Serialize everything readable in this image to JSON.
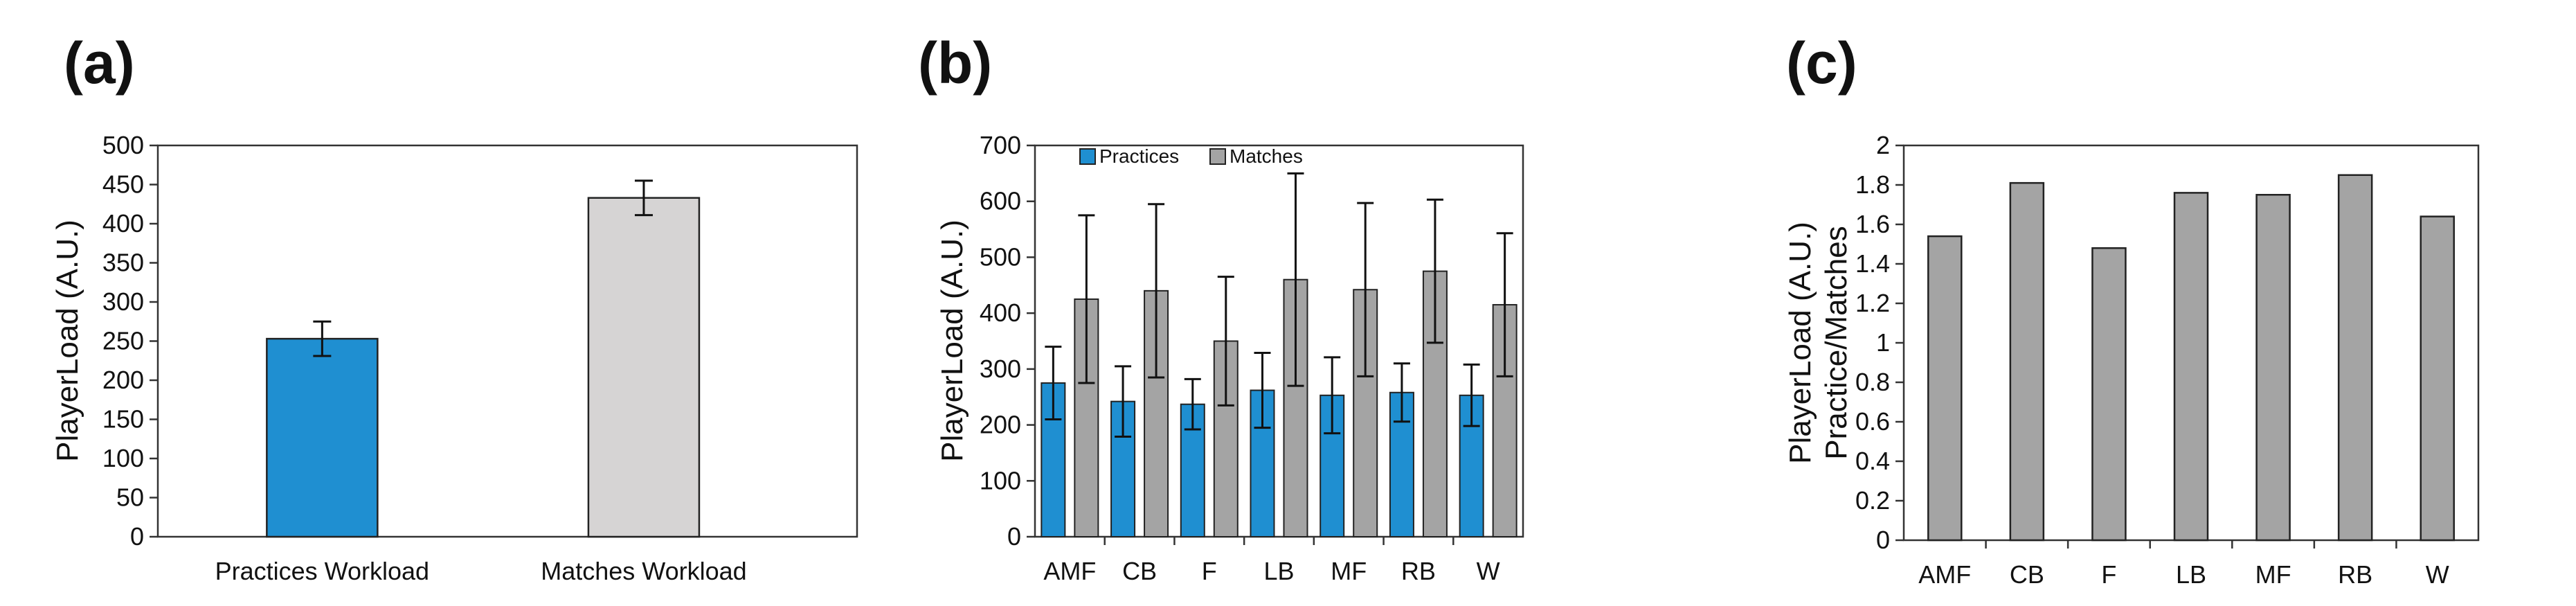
{
  "chart_data": [
    {
      "panel_label": "(a)",
      "type": "bar",
      "categories": [
        "Practices Workload",
        "Matches Workload"
      ],
      "values": [
        253,
        433
      ],
      "errors": [
        22,
        22
      ],
      "bar_colors": [
        "#1f8fd1",
        "#d6d4d4"
      ],
      "ylabel": "PlayerLoad (A.U.)",
      "ylabel_lines": [
        "PlayerLoad (A.U.)"
      ],
      "xlabel": "",
      "ylim": [
        0,
        500
      ],
      "yticks": [
        0,
        50,
        100,
        150,
        200,
        250,
        300,
        350,
        400,
        450,
        500
      ],
      "grid": false,
      "legend": "none"
    },
    {
      "panel_label": "(b)",
      "type": "bar",
      "categories": [
        "AMF",
        "CB",
        "F",
        "LB",
        "MF",
        "RB",
        "W"
      ],
      "series": [
        {
          "name": "Practices",
          "color": "#1f8fd1",
          "values": [
            275,
            242,
            237,
            262,
            253,
            258,
            253
          ],
          "errors": [
            65,
            63,
            45,
            67,
            68,
            52,
            55
          ]
        },
        {
          "name": "Matches",
          "color": "#a4a4a4",
          "values": [
            425,
            440,
            350,
            460,
            442,
            475,
            415
          ],
          "errors": [
            150,
            155,
            115,
            190,
            155,
            128,
            128
          ]
        }
      ],
      "ylabel": "PlayerLoad (A.U.)",
      "ylabel_lines": [
        "PlayerLoad (A.U.)"
      ],
      "xlabel": "",
      "ylim": [
        0,
        700
      ],
      "yticks": [
        0,
        100,
        200,
        300,
        400,
        500,
        600,
        700
      ],
      "grid": false,
      "legend": "top-left"
    },
    {
      "panel_label": "(c)",
      "type": "bar",
      "categories": [
        "AMF",
        "CB",
        "F",
        "LB",
        "MF",
        "RB",
        "W"
      ],
      "values": [
        1.54,
        1.81,
        1.48,
        1.76,
        1.75,
        1.85,
        1.64
      ],
      "bar_colors": [
        "#a4a4a4"
      ],
      "ylabel": "PlayerLoad (A.U.) Practice/Matches",
      "ylabel_lines": [
        "PlayerLoad (A.U.)",
        "Practice/Matches"
      ],
      "xlabel": "",
      "ylim": [
        0,
        2
      ],
      "yticks": [
        "0",
        "0.2",
        "0.4",
        "0.6",
        "0.8",
        "1",
        "1.2",
        "1.4",
        "1.6",
        "1.8",
        "2"
      ],
      "grid": false,
      "legend": "none"
    }
  ]
}
